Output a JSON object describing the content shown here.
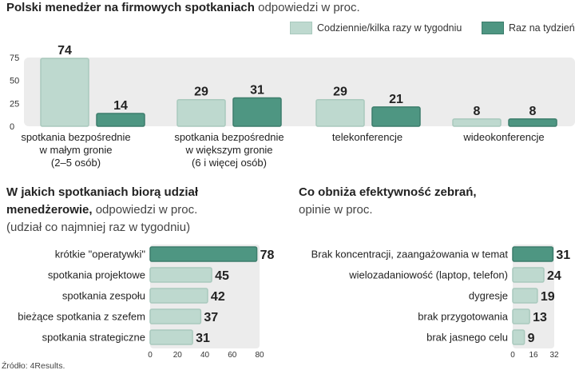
{
  "colors": {
    "light": "#bed9cf",
    "dark": "#4e9682",
    "light_border": "#a9c9bd",
    "dark_border": "#3d7d6c",
    "bg_band": "#ececec"
  },
  "top": {
    "title_bold": "Polski menedżer na firmowych  spotkaniach",
    "title_normal": " odpowiedzi w proc.",
    "legend": [
      "Codziennie/kilka razy w tygodniu",
      "Raz na tydzień"
    ]
  },
  "left": {
    "title_bold_1": "W jakich spotkaniach biorą udział",
    "title_bold_2": "menedżerowie,",
    "title_normal_2": " odpowiedzi w proc.",
    "title_line_3": "(udział co najmniej raz w tygodniu)"
  },
  "right": {
    "title_bold": "Co obniża efektywność zebrań,",
    "title_line_2": "opinie w proc."
  },
  "source": "Źródło: 4Results.",
  "chart_data": [
    {
      "type": "bar",
      "categories": [
        [
          "spotkania bezpośrednie",
          "w małym gronie",
          "(2–5 osób)"
        ],
        [
          "spotkania  bezpośrednie",
          "w większym gronie",
          "(6 i więcej osób)"
        ],
        [
          "telekonferencje"
        ],
        [
          "wideokonferencje"
        ]
      ],
      "series": [
        {
          "name": "Codziennie/kilka razy w tygodniu",
          "values": [
            74,
            29,
            29,
            8
          ]
        },
        {
          "name": "Raz na tydzień",
          "values": [
            14,
            31,
            21,
            8
          ]
        }
      ],
      "yticks": [
        0,
        25,
        50,
        75
      ],
      "ylim": [
        0,
        80
      ],
      "grid": false,
      "legend": "top-right"
    },
    {
      "type": "bar",
      "orientation": "horizontal",
      "categories": [
        "krótkie \"operatywki\"",
        "spotkania projektowe",
        "spotkania zespołu",
        "bieżące spotkania z szefem",
        "spotkania strategiczne"
      ],
      "values": [
        78,
        45,
        42,
        37,
        31
      ],
      "highlight": [
        true,
        false,
        false,
        false,
        false
      ],
      "xticks": [
        0,
        20,
        40,
        60,
        80
      ],
      "xlim": [
        0,
        80
      ]
    },
    {
      "type": "bar",
      "orientation": "horizontal",
      "categories": [
        "Brak koncentracji, zaangażowania w temat",
        "wielozadaniowość (laptop, telefon)",
        "dygresje",
        "brak przygotowania",
        "brak jasnego celu"
      ],
      "values": [
        31,
        24,
        19,
        13,
        9
      ],
      "highlight": [
        true,
        false,
        false,
        false,
        false
      ],
      "xticks": [
        0,
        16,
        32
      ],
      "xlim": [
        0,
        32
      ]
    }
  ]
}
